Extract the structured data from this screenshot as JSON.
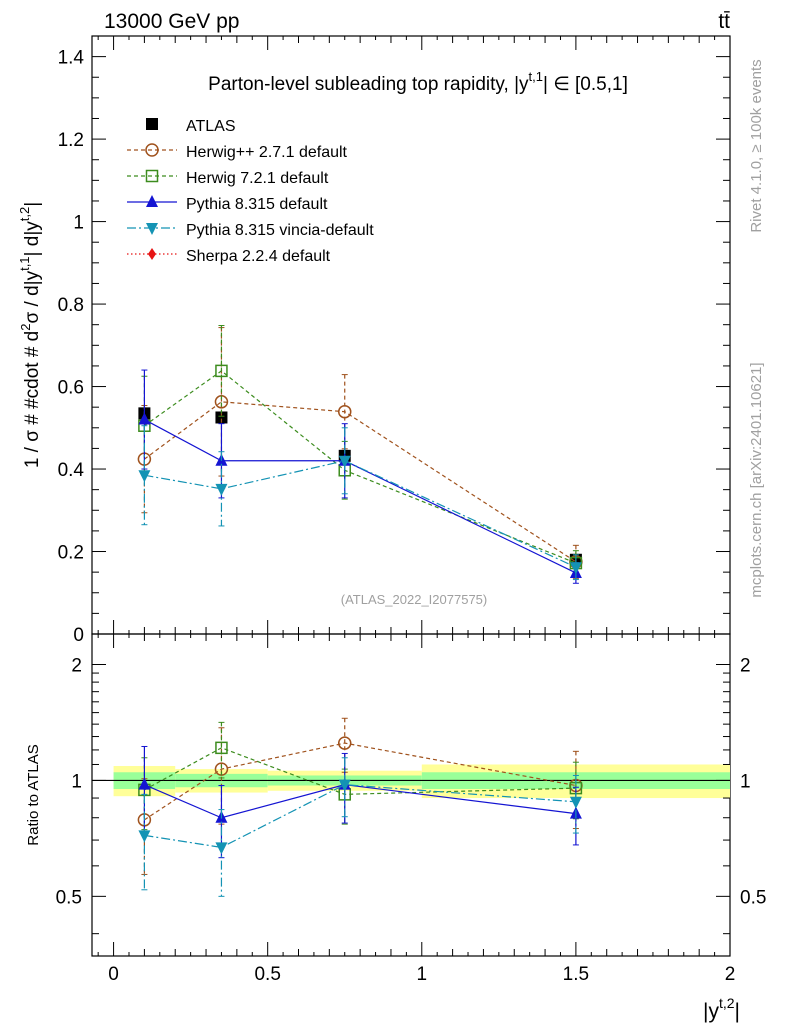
{
  "header": {
    "energy_label": "13000 GeV pp",
    "process_label": "tt̄"
  },
  "side_labels": {
    "rivet": "Rivet 4.1.0, ≥ 100k events",
    "mcplots": "mcplots.cern.ch [arXiv:2401.10621]"
  },
  "colors": {
    "atlas": "#000000",
    "herwigpp": "#a0521d",
    "herwig7": "#3c8c1e",
    "pythia": "#1414d2",
    "vincia": "#1493b4",
    "sherpa": "#e61414",
    "band_inner": "#99ff99",
    "band_outer": "#ffff99"
  },
  "chart_data": [
    {
      "id": "main",
      "type": "scatter",
      "title": "Parton-level subleading top rapidity, |y^{t,1}| ∈ [0.5,1]",
      "title_parts": {
        "pre": "Parton-level subleading top rapidity, |y",
        "sup": "t,1",
        "post": "| ∈ [0.5,1]"
      },
      "ylabel": "1 / σ # #cdot # d²σ / d|y^{t,1}| d|y^{t,2}|",
      "ylabel_parts": {
        "a": "1 / σ # #cdot # d",
        "b": "2",
        "c": "σ / d|y",
        "d": "t,1",
        "e": "| d|y",
        "f": "t,2",
        "g": "|"
      },
      "xlim": [
        -0.07,
        2.0
      ],
      "ylim": [
        0,
        1.45
      ],
      "yticks": [
        0,
        0.2,
        0.4,
        0.6,
        0.8,
        1,
        1.2,
        1.4
      ],
      "ytick_labels": [
        "0",
        "0.2",
        "0.4",
        "0.6",
        "0.8",
        "1",
        "1.2",
        "1.4"
      ],
      "watermark": "(ATLAS_2022_I2077575)",
      "legend": [
        {
          "label": "ATLAS",
          "series": "atlas"
        },
        {
          "label": "Herwig++ 2.7.1 default",
          "series": "herwigpp"
        },
        {
          "label": "Herwig 7.2.1 default",
          "series": "herwig7"
        },
        {
          "label": "Pythia 8.315 default",
          "series": "pythia"
        },
        {
          "label": "Pythia 8.315 vincia-default",
          "series": "vincia"
        },
        {
          "label": "Sherpa 2.2.4 default",
          "series": "sherpa"
        }
      ],
      "x": [
        0.1,
        0.35,
        0.75,
        1.5
      ],
      "series": [
        {
          "name": "ATLAS",
          "key": "atlas",
          "values": [
            0.535,
            0.525,
            0.432,
            0.18
          ],
          "err": [
            0.01,
            0.01,
            0.01,
            0.008
          ]
        },
        {
          "name": "Herwig++ 2.7.1 default",
          "key": "herwigpp",
          "values": [
            0.424,
            0.563,
            0.539,
            0.175
          ],
          "err": [
            0.13,
            0.18,
            0.09,
            0.04
          ]
        },
        {
          "name": "Herwig 7.2.1 default",
          "key": "herwig7",
          "values": [
            0.505,
            0.638,
            0.397,
            0.172
          ],
          "err": [
            0.12,
            0.11,
            0.07,
            0.03
          ]
        },
        {
          "name": "Pythia 8.315 default",
          "key": "pythia",
          "values": [
            0.52,
            0.42,
            0.42,
            0.148
          ],
          "err": [
            0.12,
            0.09,
            0.09,
            0.025
          ]
        },
        {
          "name": "Pythia 8.315 vincia-default",
          "key": "vincia",
          "values": [
            0.385,
            0.352,
            0.42,
            0.162
          ],
          "err": [
            0.12,
            0.09,
            0.08,
            0.03
          ]
        },
        {
          "name": "Sherpa 2.2.4 default",
          "key": "sherpa",
          "values": [],
          "err": []
        }
      ]
    },
    {
      "id": "ratio",
      "type": "scatter",
      "ylabel": "Ratio to ATLAS",
      "xlabel": "|y^{t,2}|",
      "xlabel_parts": {
        "pre": "|y",
        "sup": "t,2",
        "post": "|"
      },
      "log_y": true,
      "ylim": [
        0.35,
        2.4
      ],
      "yticks": [
        0.5,
        1,
        2
      ],
      "ytick_labels": [
        "0.5",
        "1",
        "2"
      ],
      "xlim": [
        -0.07,
        2.0
      ],
      "xticks": [
        0,
        0.5,
        1,
        1.5,
        2
      ],
      "xtick_labels": [
        "0",
        "0.5",
        "1",
        "1.5",
        "2"
      ],
      "bins": [
        [
          0,
          0.2
        ],
        [
          0.2,
          0.5
        ],
        [
          0.5,
          1.0
        ],
        [
          1.0,
          2.0
        ]
      ],
      "band_inner": [
        0.05,
        0.04,
        0.03,
        0.05
      ],
      "band_outer": [
        0.09,
        0.07,
        0.06,
        0.1
      ],
      "x": [
        0.1,
        0.35,
        0.75,
        1.5
      ],
      "series": [
        {
          "name": "Herwig++ 2.7.1 default",
          "key": "herwigpp",
          "values": [
            0.79,
            1.07,
            1.25,
            0.97
          ],
          "err": [
            0.22,
            0.3,
            0.2,
            0.22
          ]
        },
        {
          "name": "Herwig 7.2.1 default",
          "key": "herwig7",
          "values": [
            0.945,
            1.215,
            0.92,
            0.955
          ],
          "err": [
            0.2,
            0.2,
            0.15,
            0.16
          ]
        },
        {
          "name": "Pythia 8.315 default",
          "key": "pythia",
          "values": [
            0.975,
            0.8,
            0.975,
            0.82
          ],
          "err": [
            0.25,
            0.17,
            0.2,
            0.14
          ]
        },
        {
          "name": "Pythia 8.315 vincia-default",
          "key": "vincia",
          "values": [
            0.72,
            0.67,
            0.975,
            0.88
          ],
          "err": [
            0.2,
            0.17,
            0.17,
            0.15
          ]
        }
      ]
    }
  ]
}
